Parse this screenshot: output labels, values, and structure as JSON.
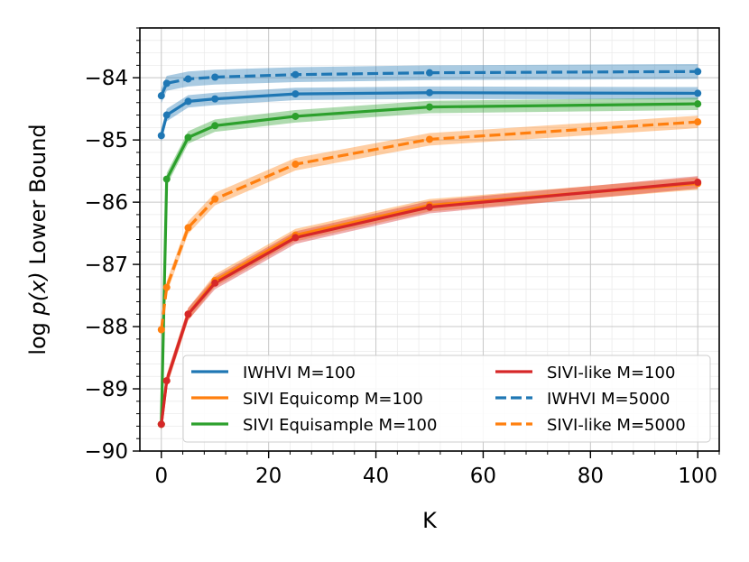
{
  "chart_data": {
    "type": "line",
    "xlabel": "K",
    "ylabel_prefix": "log ",
    "ylabel_math": "p(x)",
    "ylabel_suffix": " Lower Bound",
    "xlim": [
      -4,
      104
    ],
    "ylim": [
      -90,
      -83.2
    ],
    "x_ticks": [
      0,
      20,
      40,
      60,
      80,
      100
    ],
    "x_tick_labels": [
      "0",
      "20",
      "40",
      "60",
      "80",
      "100"
    ],
    "y_ticks": [
      -90,
      -89,
      -88,
      -87,
      -86,
      -85,
      -84
    ],
    "y_tick_labels": [
      "−90",
      "−89",
      "−88",
      "−87",
      "−86",
      "−85",
      "−84"
    ],
    "grid": true,
    "legend_position": "lower-right",
    "series": [
      {
        "name": "IWHVI M=100",
        "color": "#1f77b4",
        "dash": "solid",
        "x": [
          0,
          1,
          5,
          10,
          25,
          50,
          100
        ],
        "values": [
          -84.93,
          -84.6,
          -84.38,
          -84.34,
          -84.26,
          -84.24,
          -84.25
        ],
        "band": 0.1
      },
      {
        "name": "SIVI Equicomp M=100",
        "color": "#ff7f0e",
        "dash": "solid",
        "x": [
          0,
          1,
          5,
          10,
          25,
          50,
          100
        ],
        "values": [
          -89.57,
          -88.87,
          -87.8,
          -87.26,
          -86.53,
          -86.05,
          -85.7
        ],
        "band": 0.1
      },
      {
        "name": "SIVI Equisample M=100",
        "color": "#2ca02c",
        "dash": "solid",
        "x": [
          0,
          1,
          5,
          10,
          25,
          50,
          100
        ],
        "values": [
          -89.57,
          -85.63,
          -84.96,
          -84.77,
          -84.62,
          -84.47,
          -84.42
        ],
        "band": 0.1
      },
      {
        "name": "SIVI-like M=100",
        "color": "#d62728",
        "dash": "solid",
        "x": [
          0,
          1,
          5,
          10,
          25,
          50,
          100
        ],
        "values": [
          -89.57,
          -88.87,
          -87.8,
          -87.3,
          -86.57,
          -86.08,
          -85.68
        ],
        "band": 0.1
      },
      {
        "name": "IWHVI M=5000",
        "color": "#1f77b4",
        "dash": "dashed",
        "x": [
          0,
          1,
          5,
          10,
          25,
          50,
          100
        ],
        "values": [
          -84.29,
          -84.09,
          -84.02,
          -83.99,
          -83.95,
          -83.92,
          -83.9
        ],
        "band": 0.12
      },
      {
        "name": "SIVI-like M=5000",
        "color": "#ff7f0e",
        "dash": "dashed",
        "x": [
          0,
          1,
          5,
          10,
          25,
          50,
          100
        ],
        "values": [
          -88.05,
          -87.37,
          -86.41,
          -85.95,
          -85.39,
          -84.99,
          -84.71
        ],
        "band": 0.1
      }
    ],
    "legend_order": [
      0,
      1,
      2,
      3,
      4,
      5
    ]
  }
}
